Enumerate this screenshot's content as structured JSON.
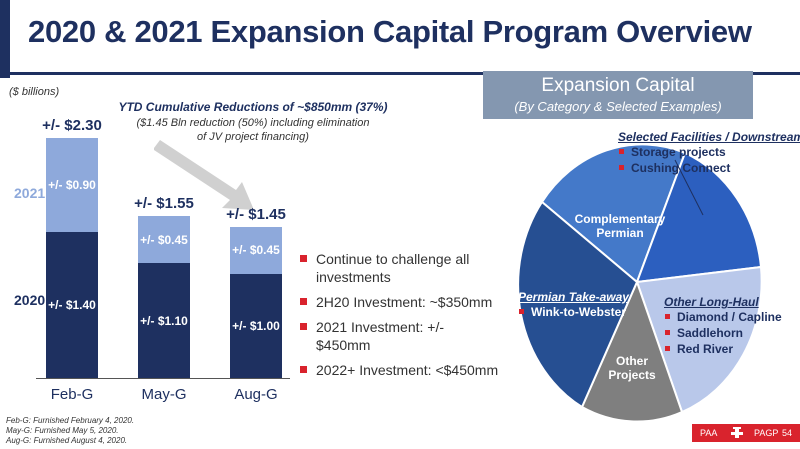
{
  "title": "2020 & 2021 Expansion Capital Program Overview",
  "units": "($ billions)",
  "reductions": {
    "title": "YTD Cumulative Reductions of ~$850mm (37%)",
    "subtitle_line1": "($1.45 Bln reduction (50%) including elimination",
    "subtitle_line2": "of JV project financing)"
  },
  "chart_data": {
    "type": "bar",
    "stacked": true,
    "categories": [
      "Feb-G",
      "May-G",
      "Aug-G"
    ],
    "series": [
      {
        "name": "2020",
        "values": [
          1.4,
          1.1,
          1.0
        ],
        "labels": [
          "+/- $1.40",
          "+/- $1.10",
          "+/- $1.00"
        ],
        "color": "#1e3060"
      },
      {
        "name": "2021",
        "values": [
          0.9,
          0.45,
          0.45
        ],
        "labels": [
          "+/- $0.90",
          "+/- $0.45",
          "+/- $0.45"
        ],
        "color": "#8ea9db"
      }
    ],
    "totals": [
      "+/- $2.30",
      "+/- $1.55",
      "+/- $1.45"
    ],
    "total_values": [
      2.3,
      1.55,
      1.45
    ]
  },
  "bullets": [
    "Continue to challenge all investments",
    "2H20 Investment: ~$350mm",
    "2021 Investment: +/- $450mm",
    "2022+ Investment: <$450mm"
  ],
  "expansion_capital": {
    "title": "Expansion Capital",
    "subtitle": "(By Category & Selected Examples)"
  },
  "pie": {
    "slices": [
      {
        "name": "Complementary Permian",
        "line1": "Complementary",
        "line2": "Permian",
        "color": "#3f78c8"
      },
      {
        "name": "Selected Facilities / Downstream",
        "color": "#2a62be"
      },
      {
        "name": "Other Long-Haul",
        "color": "#b7c6e8"
      },
      {
        "name": "Other Projects",
        "line1": "Other",
        "line2": "Projects",
        "color": "#7f7f7f"
      },
      {
        "name": "Permian Take-away",
        "color": "#24508f"
      }
    ],
    "groups": {
      "facilities": {
        "title": "Selected Facilities / Downstream",
        "items": [
          "Storage projects",
          "Cushing Connect"
        ]
      },
      "takeaway": {
        "title": "Permian Take-away",
        "items": [
          "Wink-to-Webster"
        ]
      },
      "longhaul": {
        "title": "Other Long-Haul",
        "items": [
          "Diamond / Capline",
          "Saddlehorn",
          "Red River"
        ]
      }
    }
  },
  "footnotes": [
    "Feb-G: Furnished February 4, 2020.",
    "May-G: Furnished May 5, 2020.",
    "Aug-G: Furnished August 4, 2020."
  ],
  "footer": {
    "left": "PAA",
    "right": "PAGP",
    "page": "54"
  },
  "colors": {
    "navy": "#1e3060",
    "accent_red": "#d9232d",
    "light_blue": "#8ea9db"
  }
}
